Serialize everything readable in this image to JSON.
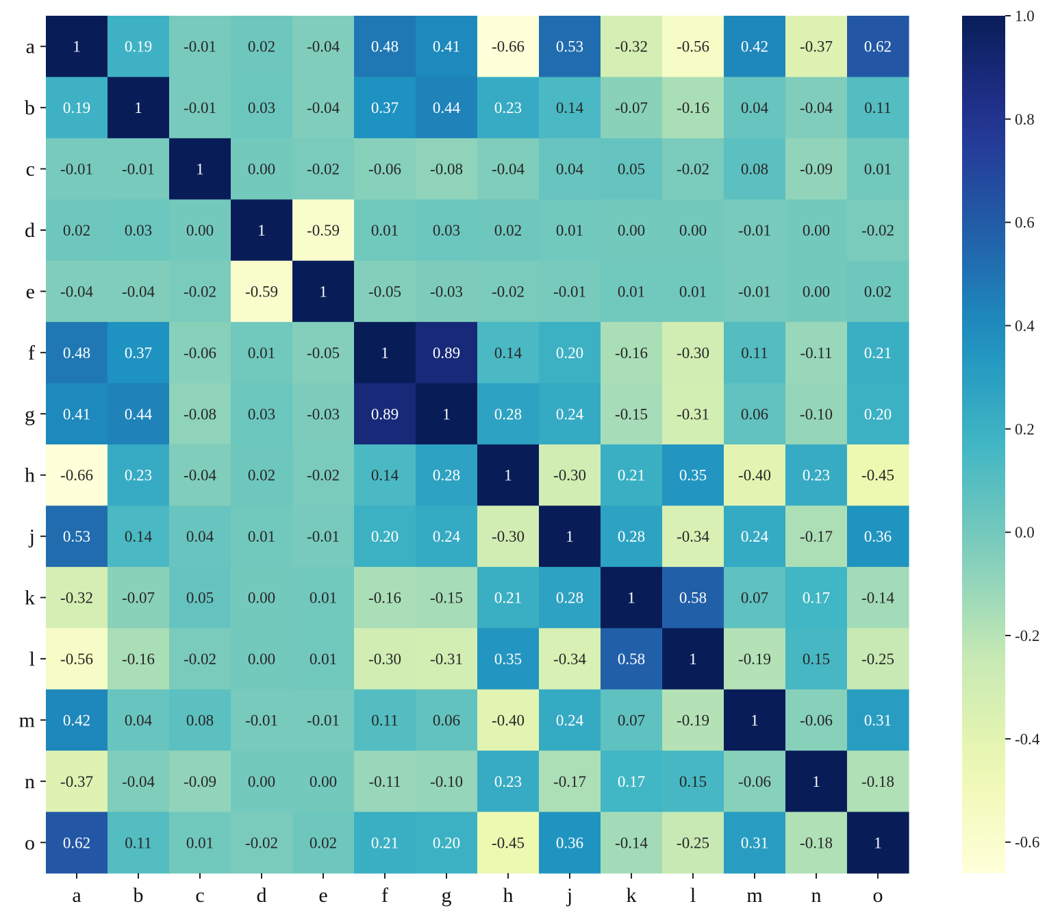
{
  "chart_data": {
    "type": "heatmap",
    "title": "",
    "xlabel": "",
    "ylabel": "",
    "x_categories": [
      "a",
      "b",
      "c",
      "d",
      "e",
      "f",
      "g",
      "h",
      "j",
      "k",
      "l",
      "m",
      "n",
      "o"
    ],
    "y_categories": [
      "a",
      "b",
      "c",
      "d",
      "e",
      "f",
      "g",
      "h",
      "j",
      "k",
      "l",
      "m",
      "n",
      "o"
    ],
    "values": [
      [
        1,
        0.19,
        -0.01,
        0.02,
        -0.04,
        0.48,
        0.41,
        -0.66,
        0.53,
        -0.32,
        -0.56,
        0.42,
        -0.37,
        0.62
      ],
      [
        0.19,
        1,
        -0.01,
        0.03,
        -0.04,
        0.37,
        0.44,
        0.23,
        0.14,
        -0.07,
        -0.16,
        0.04,
        -0.04,
        0.11
      ],
      [
        -0.01,
        -0.01,
        1,
        0.0,
        -0.02,
        -0.06,
        -0.08,
        -0.04,
        0.04,
        0.05,
        -0.02,
        0.08,
        -0.09,
        0.01
      ],
      [
        0.02,
        0.03,
        0.0,
        1,
        -0.59,
        0.01,
        0.03,
        0.02,
        0.01,
        0.0,
        -0.0,
        -0.01,
        0.0,
        -0.02
      ],
      [
        -0.04,
        -0.04,
        -0.02,
        -0.59,
        1,
        -0.05,
        -0.03,
        -0.02,
        -0.01,
        0.01,
        0.01,
        -0.01,
        0.0,
        0.02
      ],
      [
        0.48,
        0.37,
        -0.06,
        0.01,
        -0.05,
        1,
        0.89,
        0.14,
        0.2,
        -0.16,
        -0.3,
        0.11,
        -0.11,
        0.21
      ],
      [
        0.41,
        0.44,
        -0.08,
        0.03,
        -0.03,
        0.89,
        1,
        0.28,
        0.24,
        -0.15,
        -0.31,
        0.06,
        -0.1,
        0.2
      ],
      [
        -0.66,
        0.23,
        -0.04,
        0.02,
        -0.02,
        0.14,
        0.28,
        1,
        -0.3,
        0.21,
        0.35,
        -0.4,
        0.23,
        -0.45
      ],
      [
        0.53,
        0.14,
        0.04,
        0.01,
        -0.01,
        0.2,
        0.24,
        -0.3,
        1,
        0.28,
        -0.34,
        0.24,
        -0.17,
        0.36
      ],
      [
        -0.32,
        -0.07,
        0.05,
        0.0,
        0.01,
        -0.16,
        -0.15,
        0.21,
        0.28,
        1,
        0.58,
        0.07,
        0.17,
        -0.14
      ],
      [
        -0.56,
        -0.16,
        -0.02,
        -0.0,
        0.01,
        -0.3,
        -0.31,
        0.35,
        -0.34,
        0.58,
        1,
        -0.19,
        0.15,
        -0.25
      ],
      [
        0.42,
        0.04,
        0.08,
        -0.01,
        -0.01,
        0.11,
        0.06,
        -0.4,
        0.24,
        0.07,
        -0.19,
        1,
        -0.06,
        0.31
      ],
      [
        -0.37,
        -0.04,
        -0.09,
        0.0,
        0.0,
        -0.11,
        -0.1,
        0.23,
        -0.17,
        0.17,
        0.15,
        -0.06,
        1,
        -0.18
      ],
      [
        0.62,
        0.11,
        0.01,
        -0.02,
        0.02,
        0.21,
        0.2,
        -0.45,
        0.36,
        -0.14,
        -0.25,
        0.31,
        -0.18,
        1
      ]
    ],
    "value_range": [
      -0.66,
      1.0
    ],
    "colormap": "YlGnBu",
    "colorbar": {
      "ticks": [
        1.0,
        0.8,
        0.6,
        0.4,
        0.2,
        0.0,
        -0.2,
        -0.4,
        -0.6
      ],
      "tick_labels": [
        "1.0",
        "0.8",
        "0.6",
        "0.4",
        "0.2",
        "0.0",
        "-0.2",
        "-0.4",
        "-0.6"
      ],
      "placement": "right"
    },
    "grid": false,
    "legend": "none"
  }
}
